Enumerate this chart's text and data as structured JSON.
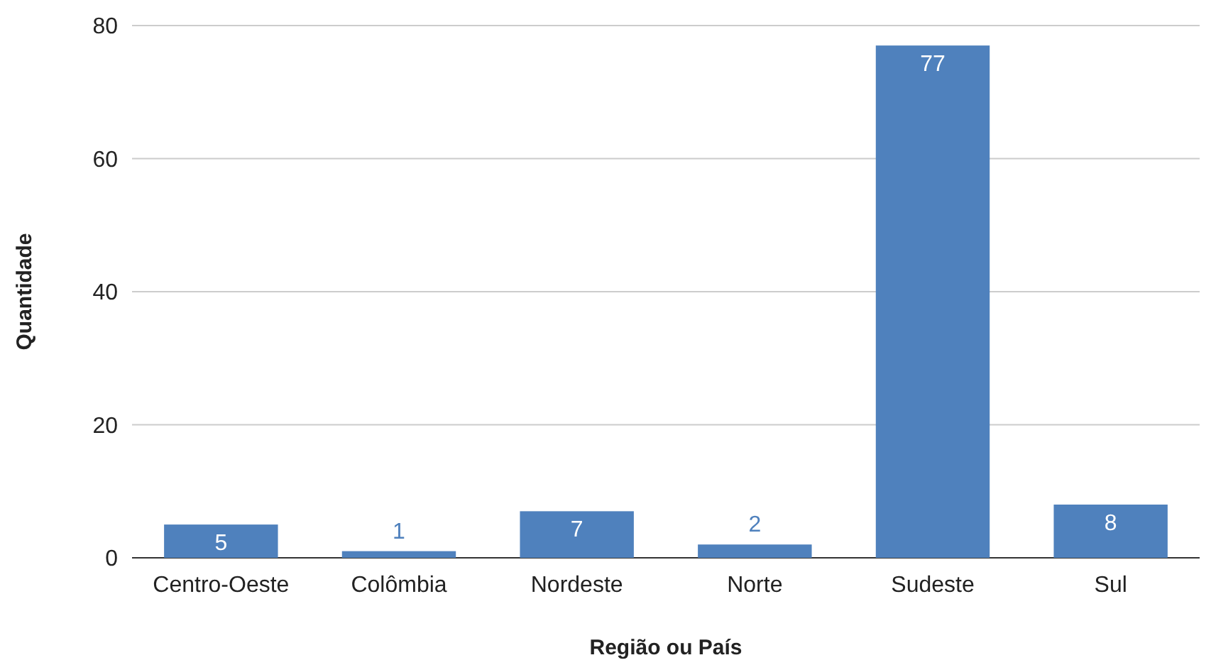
{
  "chart_data": {
    "type": "bar",
    "xlabel": "Região ou País",
    "ylabel": "Quantidade",
    "categories": [
      "Centro-Oeste",
      "Colômbia",
      "Nordeste",
      "Norte",
      "Sudeste",
      "Sul"
    ],
    "values": [
      5,
      1,
      7,
      2,
      77,
      8
    ],
    "color": "#4f81bd",
    "ylim": [
      0,
      80
    ],
    "yticks": [
      0,
      20,
      40,
      60,
      80
    ],
    "grid": "y",
    "data_labels": true
  }
}
